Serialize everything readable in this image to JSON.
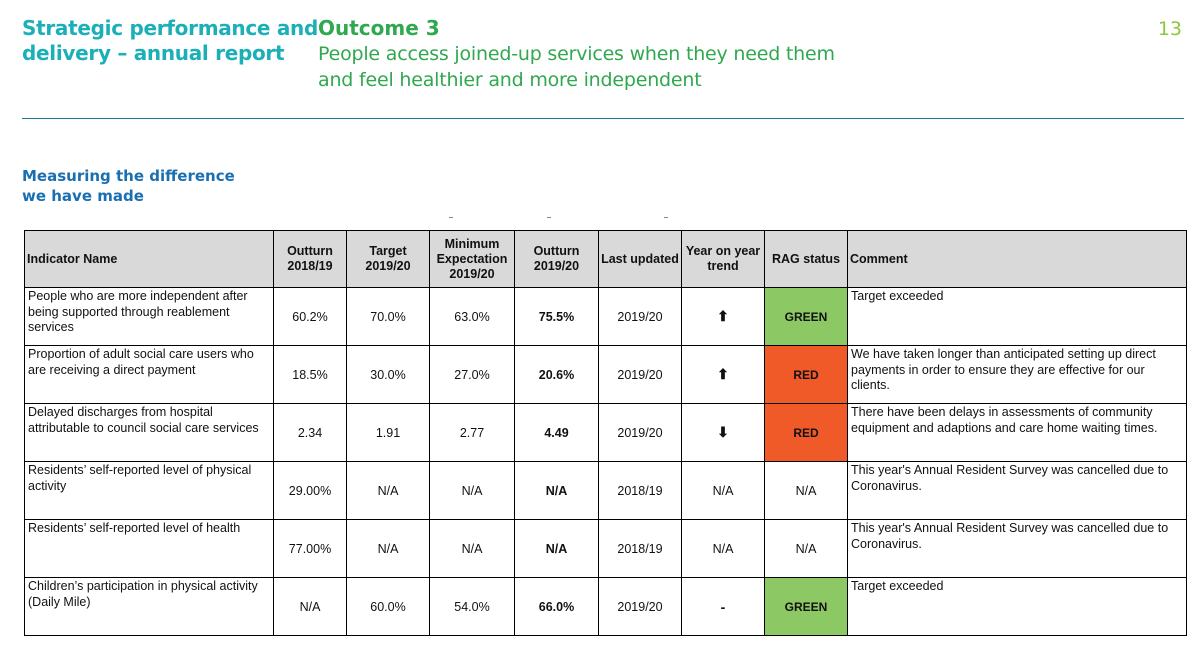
{
  "header": {
    "report_title_line1": "Strategic performance and",
    "report_title_line2": "delivery – annual report",
    "outcome_number": "Outcome 3",
    "outcome_line1": "People access joined-up services when they need them",
    "outcome_line2": "and feel healthier and more independent",
    "page_number": "13"
  },
  "section": {
    "heading_line1": "Measuring the difference",
    "heading_line2": "we have made"
  },
  "colors": {
    "title_teal": "#1bb0b8",
    "outcome_green": "#2fa84f",
    "page_number_green": "#8cc63f",
    "heading_blue": "#1a6fb0",
    "rag_green": "#8cc864",
    "rag_red": "#f05a28",
    "header_fill": "#d9d9d9"
  },
  "table": {
    "columns": [
      "Indicator Name",
      "Outturn 2018/19",
      "Target 2019/20",
      "Minimum Expectation 2019/20",
      "Outturn 2019/20",
      "Last updated",
      "Year on year trend",
      "RAG status",
      "Comment"
    ],
    "rows": [
      {
        "name": "People who are more independent after being supported through reablement services",
        "outturn_1819": "60.2%",
        "target_1920": "70.0%",
        "min_expectation": "63.0%",
        "outturn_1920": "75.5%",
        "last_updated": "2019/20",
        "trend": "up-arrow-icon",
        "trend_glyph": "⬆",
        "rag": "GREEN",
        "comment": "Target exceeded"
      },
      {
        "name": "Proportion of adult social care users who are receiving a direct payment",
        "outturn_1819": "18.5%",
        "target_1920": "30.0%",
        "min_expectation": "27.0%",
        "outturn_1920": "20.6%",
        "last_updated": "2019/20",
        "trend": "up-arrow-icon",
        "trend_glyph": "⬆",
        "rag": "RED",
        "comment": "We have taken longer than anticipated setting up direct payments in order to ensure they are effective for our clients."
      },
      {
        "name": "Delayed discharges from hospital attributable to council social care services",
        "outturn_1819": "2.34",
        "target_1920": "1.91",
        "min_expectation": "2.77",
        "outturn_1920": "4.49",
        "last_updated": "2019/20",
        "trend": "down-arrow-icon",
        "trend_glyph": "⬇",
        "rag": "RED",
        "comment": "There have been delays in assessments of community equipment and adaptions and care home waiting times."
      },
      {
        "name": "Residents’ self-reported level of physical activity",
        "outturn_1819": "29.00%",
        "target_1920": "N/A",
        "min_expectation": "N/A",
        "outturn_1920": "N/A",
        "last_updated": "2018/19",
        "trend": "text",
        "trend_glyph": "N/A",
        "rag": "N/A",
        "comment": "This year's Annual Resident Survey was cancelled due to Coronavirus."
      },
      {
        "name": "Residents’ self-reported level of health",
        "outturn_1819": "77.00%",
        "target_1920": "N/A",
        "min_expectation": "N/A",
        "outturn_1920": "N/A",
        "last_updated": "2018/19",
        "trend": "text",
        "trend_glyph": "N/A",
        "rag": "N/A",
        "comment": "This year's Annual Resident Survey was cancelled due to Coronavirus."
      },
      {
        "name": "Children’s participation in physical activity (Daily Mile)",
        "outturn_1819": "N/A",
        "target_1920": "60.0%",
        "min_expectation": "54.0%",
        "outturn_1920": "66.0%",
        "last_updated": "2019/20",
        "trend": "no-change-icon",
        "trend_glyph": "-",
        "rag": "GREEN",
        "comment": "Target exceeded"
      }
    ]
  }
}
